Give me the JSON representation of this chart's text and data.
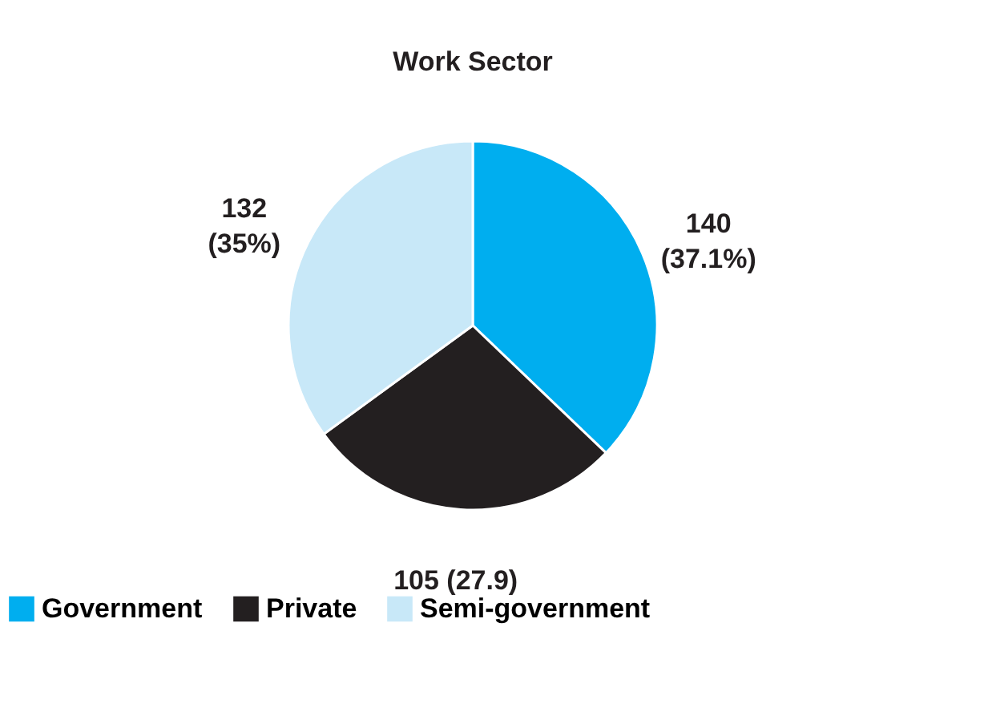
{
  "chart_data": {
    "type": "pie",
    "title": "Work Sector",
    "categories": [
      "Government",
      "Private",
      "Semi-government"
    ],
    "values": [
      140,
      105,
      132
    ],
    "colors": [
      "#00aeef",
      "#231f20",
      "#c8e8f8"
    ],
    "value_labels": [
      "140\n(37.1%)",
      "105 (27.9)",
      "132\n(35%)"
    ],
    "legend": "bottom"
  }
}
